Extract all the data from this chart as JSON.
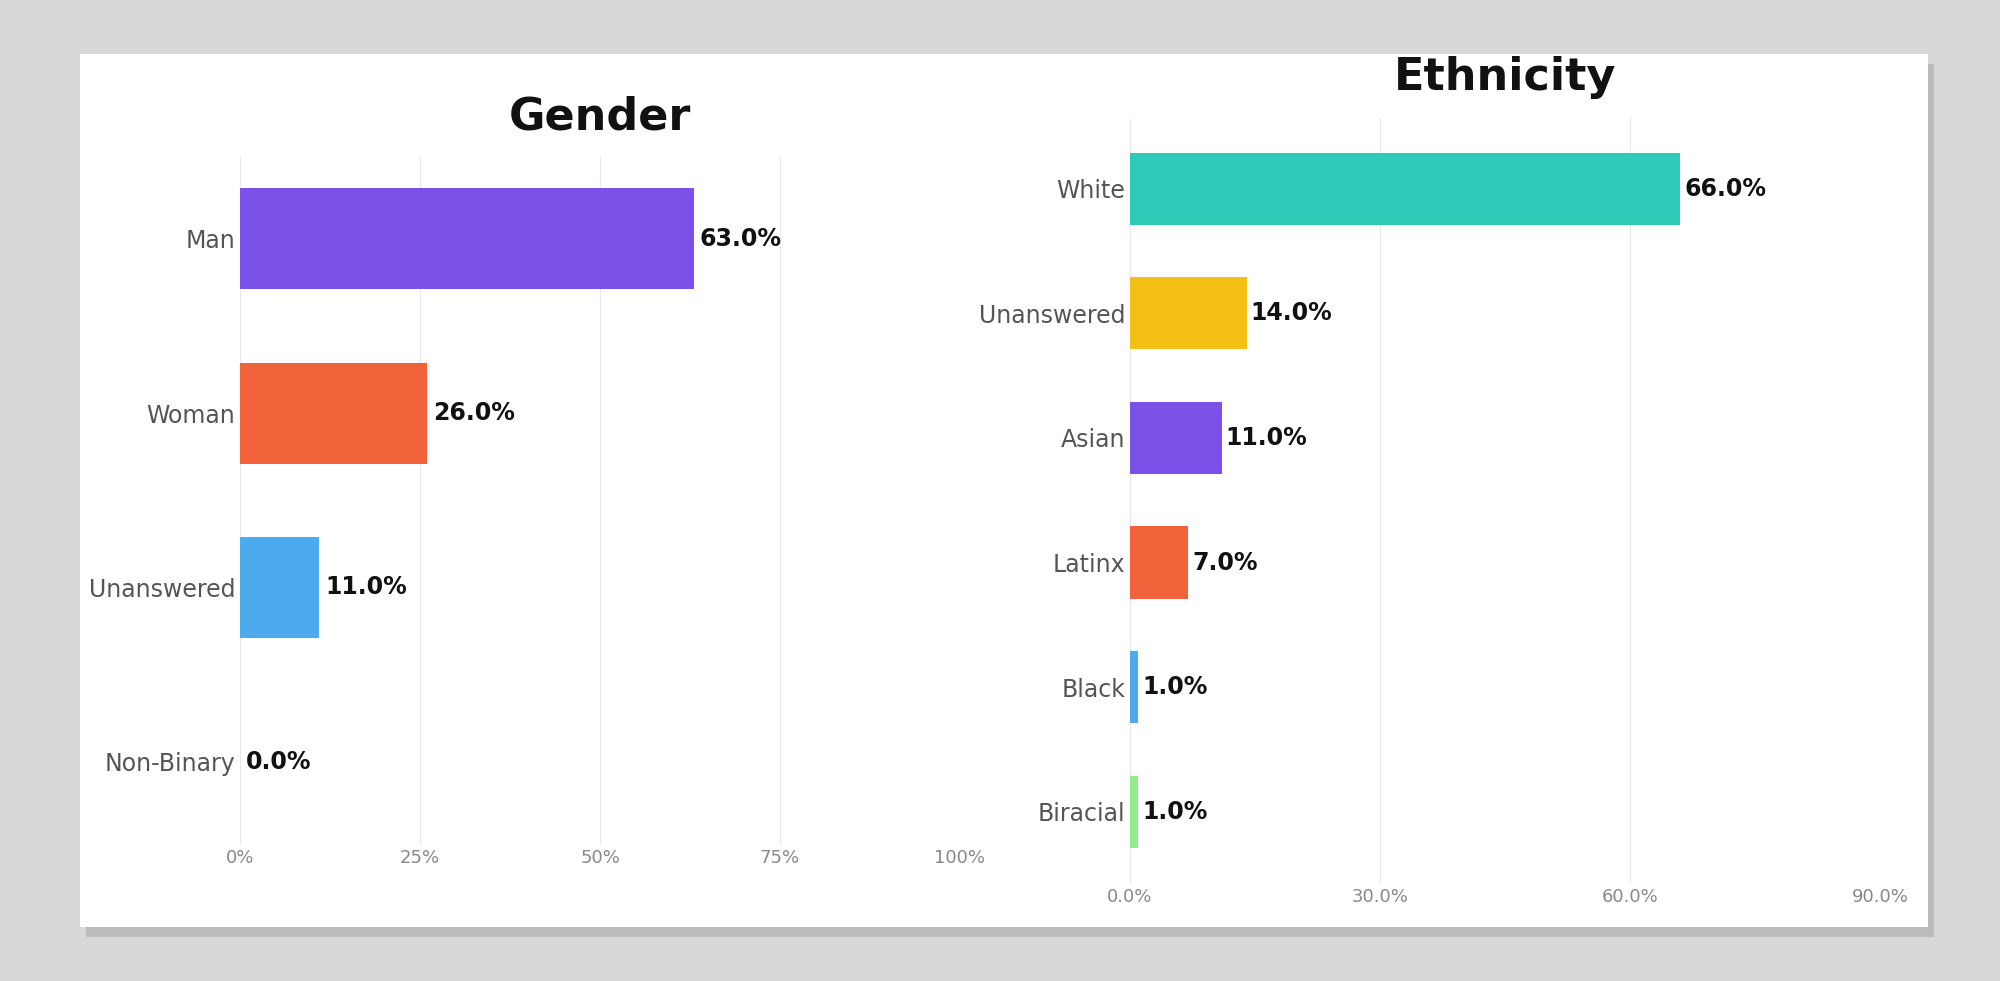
{
  "gender": {
    "title": "Gender",
    "categories": [
      "Man",
      "Woman",
      "Unanswered",
      "Non-Binary"
    ],
    "values": [
      63.0,
      26.0,
      11.0,
      0.0
    ],
    "colors": [
      "#7B52E8",
      "#F2623A",
      "#4DAAED",
      "#cccccc"
    ],
    "xlim": [
      0,
      100
    ],
    "xticks": [
      0,
      25,
      50,
      75,
      100
    ],
    "xticklabels": [
      "0%",
      "25%",
      "50%",
      "75%",
      "100%"
    ]
  },
  "ethnicity": {
    "title": "Ethnicity",
    "categories": [
      "White",
      "Unanswered",
      "Asian",
      "Latinx",
      "Black",
      "Biracial"
    ],
    "values": [
      66.0,
      14.0,
      11.0,
      7.0,
      1.0,
      1.0
    ],
    "colors": [
      "#2ECAB8",
      "#F5C015",
      "#7B52E8",
      "#F2623A",
      "#4DAAED",
      "#90EE90"
    ],
    "xlim": [
      0,
      90
    ],
    "xticks": [
      0,
      30,
      60,
      90
    ],
    "xticklabels": [
      "0.0%",
      "30.0%",
      "60.0%",
      "90.0%"
    ]
  },
  "background_color": "#d8d8d8",
  "card_color": "#ffffff",
  "title_fontsize": 32,
  "label_fontsize": 17,
  "value_fontsize": 17,
  "tick_fontsize": 13,
  "bar_height": 0.58
}
